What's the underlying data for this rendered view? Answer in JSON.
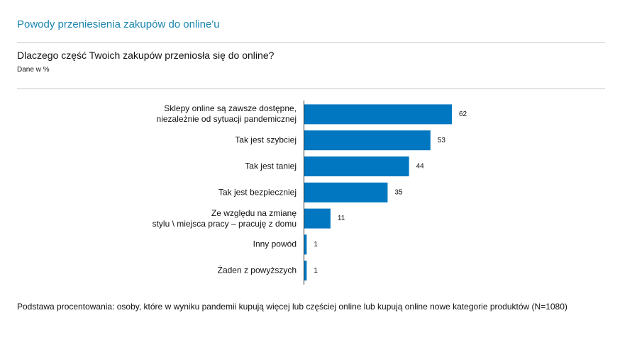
{
  "header": {
    "title": "Powody przeniesienia zakupów do online'u"
  },
  "chart_data": {
    "type": "bar",
    "orientation": "horizontal",
    "title": "Dlaczego część Twoich zakupów przeniosła się do online?",
    "subtitle": "Dane w %",
    "categories": [
      "Sklepy online są zawsze dostępne,\nniezależnie od sytuacji pandemicznej",
      "Tak jest szybciej",
      "Tak jest taniej",
      "Tak jest bezpieczniej",
      "Ze względu na zmianę\nstylu \\ miejsca pracy – pracuję z domu",
      "Inny powód",
      "Żaden z powyższych"
    ],
    "values": [
      62,
      53,
      44,
      35,
      11,
      1,
      1
    ],
    "color": "#0077c0"
  },
  "footer": {
    "note": "Podstawa procentowania: osoby, które w wyniku pandemii kupują więcej lub częściej online lub kupują online nowe kategorie produktów (N=1080)"
  }
}
